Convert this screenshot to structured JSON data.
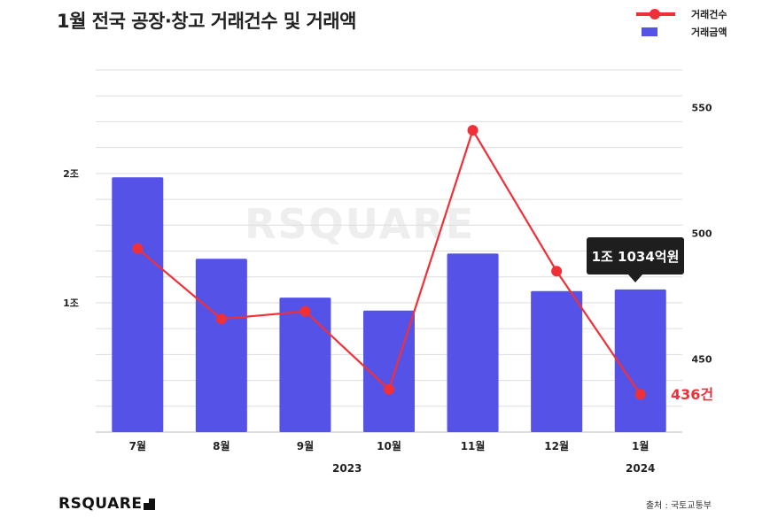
{
  "title": "1월 전국 공장·창고 거래건수 및 거래액",
  "legend": [
    {
      "label": "거래건수",
      "type": "line",
      "color": "#ef3038"
    },
    {
      "label": "거래금액",
      "type": "bar",
      "color": "#5552e8"
    }
  ],
  "watermark": "RSQUARE",
  "logo": "RSQUARE",
  "source": "출처 : 국토교통부",
  "chart_data": {
    "type": "bar+line",
    "categories": [
      "7월",
      "8월",
      "9월",
      "10월",
      "11월",
      "12월",
      "1월"
    ],
    "year_labels": [
      "2023",
      "2024"
    ],
    "series": [
      {
        "name": "거래금액",
        "type": "bar",
        "axis": "left",
        "unit": "조",
        "values": [
          1.97,
          1.34,
          1.04,
          0.94,
          1.38,
          1.09,
          1.1034
        ],
        "color": "#5552e8"
      },
      {
        "name": "거래건수",
        "type": "line",
        "axis": "right",
        "unit": "건",
        "values": [
          494,
          466,
          469,
          438,
          541,
          485,
          436
        ],
        "color": "#ef3038"
      }
    ],
    "left_axis": {
      "range": [
        0,
        2.8
      ],
      "ticks": [
        {
          "value": 1,
          "label": "1조"
        },
        {
          "value": 2,
          "label": "2조"
        }
      ]
    },
    "right_axis": {
      "range": [
        421,
        565
      ],
      "ticks": [
        {
          "value": 450,
          "label": "450"
        },
        {
          "value": 500,
          "label": "500"
        },
        {
          "value": 550,
          "label": "550"
        }
      ]
    },
    "grid": true,
    "legend_position": "top-right",
    "annotations": [
      {
        "category": "1월",
        "series": "거래금액",
        "text": "1조 1034억원"
      },
      {
        "category": "1월",
        "series": "거래건수",
        "text": "436건"
      }
    ]
  }
}
